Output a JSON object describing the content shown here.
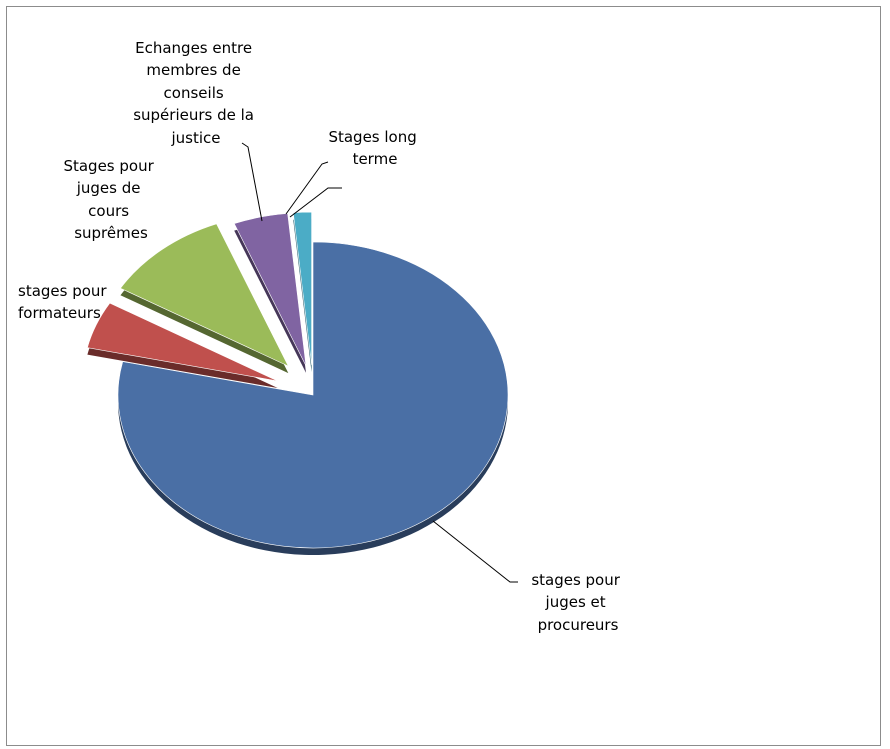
{
  "chart_data": {
    "type": "pie",
    "title": "",
    "legend": "none",
    "slices": [
      {
        "label": "stages pour juges et procureurs",
        "value": 78.5,
        "color": "#4a6fa5"
      },
      {
        "label": "stages pour formateurs",
        "value": 5.0,
        "color": "#c0504d"
      },
      {
        "label": "Stages pour juges de cours suprêmes",
        "value": 10.5,
        "color": "#9bbb59"
      },
      {
        "label": "Echanges entre membres de conseils supérieurs de la justice",
        "value": 4.5,
        "color": "#8064a2"
      },
      {
        "label": "Stages long terme",
        "value": 1.5,
        "color": "#4bacc6"
      }
    ]
  }
}
